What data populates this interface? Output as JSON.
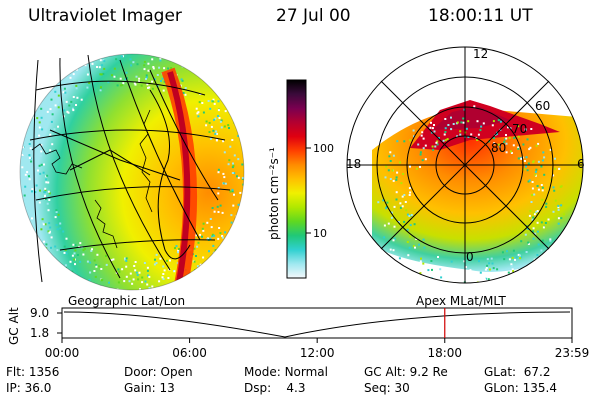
{
  "header": {
    "title": "Ultraviolet Imager",
    "date": "27 Jul 00",
    "time": "18:00:11 UT"
  },
  "colorbar": {
    "label": "photon cm⁻²s⁻¹",
    "ticks": [
      "100",
      "10"
    ],
    "colors": [
      "#000000",
      "#3a0a3a",
      "#7a0050",
      "#b30030",
      "#e00010",
      "#ff4000",
      "#ff8c00",
      "#ffc000",
      "#f0f000",
      "#b0e800",
      "#60d820",
      "#20c878",
      "#30d0d0",
      "#a0e8f0",
      "#f4f8fb"
    ]
  },
  "polar": {
    "mlt_labels": {
      "top": "12",
      "left": "18",
      "right": "6",
      "bottom": "0"
    },
    "lat_labels": [
      "60",
      "70",
      "80"
    ]
  },
  "panels": {
    "left_label": "Geographic Lat/Lon",
    "right_label": "Apex MLat/MLT"
  },
  "altitude_plot": {
    "ylabel": "GC Alt",
    "y_ticks": [
      "9.0",
      "1.8"
    ],
    "x_ticks": [
      "00:00",
      "06:00",
      "12:00",
      "18:00",
      "23:59"
    ],
    "marker_time": "18:00",
    "marker_color": "#d00000"
  },
  "info": {
    "flt": {
      "label": "Flt:",
      "value": "1356"
    },
    "ip": {
      "label": "IP:",
      "value": "36.0"
    },
    "door": {
      "label": "Door:",
      "value": "Open"
    },
    "gain": {
      "label": "Gain:",
      "value": "13"
    },
    "mode": {
      "label": "Mode:",
      "value": "Normal"
    },
    "dsp": {
      "label": "Dsp:",
      "value": "4.3"
    },
    "gcalt": {
      "label": "GC Alt:",
      "value": "9.2 Re"
    },
    "seq": {
      "label": "Seq:",
      "value": "30"
    },
    "glat": {
      "label": "GLat:",
      "value": "67.2"
    },
    "glon": {
      "label": "GLon:",
      "value": "135.4"
    }
  }
}
